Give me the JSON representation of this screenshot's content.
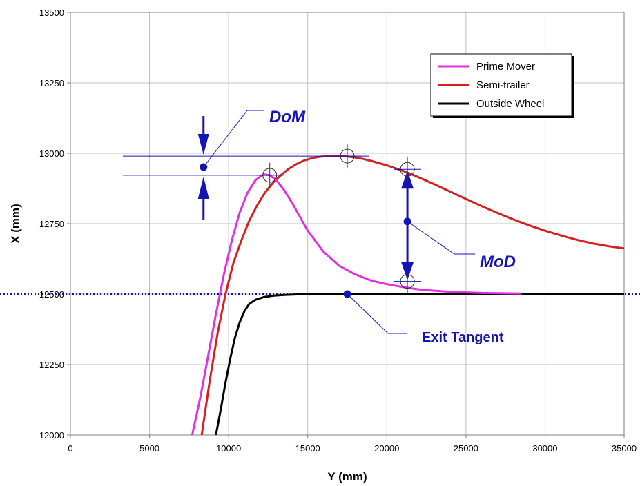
{
  "chart_data": {
    "type": "line",
    "title": "",
    "xlabel": "Y (mm)",
    "ylabel": "X (mm)",
    "xlim": [
      0,
      35000
    ],
    "ylim": [
      12000,
      13500
    ],
    "x_ticks": [
      0,
      5000,
      10000,
      15000,
      20000,
      25000,
      30000,
      35000
    ],
    "y_ticks": [
      12000,
      12250,
      12500,
      12750,
      13000,
      13250,
      13500
    ],
    "x_tick_labels": [
      "0",
      "5000",
      "10000",
      "15000",
      "20000",
      "25000",
      "30000",
      "35000"
    ],
    "y_tick_labels": [
      "12000",
      "12250",
      "12500",
      "12750",
      "13000",
      "13250",
      "13500"
    ],
    "grid": true,
    "legend_position": "top-right",
    "series": [
      {
        "name": "Prime Mover",
        "color": "#e030e0",
        "x": [
          7700,
          8200,
          8700,
          9200,
          9700,
          10200,
          10700,
          11200,
          11700,
          12200,
          12600,
          13000,
          13500,
          14000,
          14500,
          15000,
          16000,
          17000,
          18000,
          19000,
          20000,
          21000,
          22000,
          23000,
          24000,
          26000,
          28500
        ],
        "y": [
          12000,
          12130,
          12280,
          12430,
          12570,
          12690,
          12790,
          12860,
          12905,
          12925,
          12922,
          12905,
          12870,
          12825,
          12775,
          12725,
          12650,
          12600,
          12570,
          12548,
          12535,
          12525,
          12517,
          12512,
          12508,
          12504,
          12502
        ]
      },
      {
        "name": "Semi-trailer",
        "color": "#d62020",
        "x": [
          8300,
          8800,
          9300,
          9800,
          10300,
          10800,
          11300,
          11800,
          12300,
          12800,
          13300,
          13800,
          14300,
          14800,
          15300,
          15800,
          16300,
          16800,
          17300,
          17600,
          18000,
          18500,
          19000,
          20000,
          21000,
          22000,
          23000,
          24000,
          25000,
          26000,
          27000,
          28000,
          29000,
          30000,
          31000,
          32000,
          33000,
          34000,
          35000
        ],
        "y": [
          12000,
          12190,
          12360,
          12500,
          12610,
          12690,
          12760,
          12815,
          12860,
          12895,
          12922,
          12945,
          12962,
          12975,
          12983,
          12988,
          12990,
          12990,
          12989,
          12988,
          12985,
          12980,
          12973,
          12957,
          12938,
          12915,
          12890,
          12864,
          12838,
          12812,
          12788,
          12765,
          12744,
          12725,
          12708,
          12693,
          12680,
          12670,
          12662
        ]
      },
      {
        "name": "Outside Wheel",
        "color": "#000000",
        "x": [
          9200,
          9500,
          9800,
          10100,
          10400,
          10700,
          11000,
          11300,
          11700,
          12200,
          12800,
          13500,
          14500,
          15500,
          17000,
          20000,
          25000,
          30000,
          35000
        ],
        "y": [
          12000,
          12090,
          12185,
          12270,
          12345,
          12400,
          12440,
          12465,
          12480,
          12489,
          12494,
          12497,
          12499,
          12500,
          12500,
          12500,
          12500,
          12500,
          12500
        ]
      }
    ],
    "reference_line": {
      "y": 12500,
      "style": "dotted",
      "color": "#1414b4"
    },
    "annotations": [
      {
        "label": "DoM",
        "y_top": 12990,
        "y_bottom": 12922,
        "x_arrow": 8500
      },
      {
        "label": "MoD",
        "x": 21300,
        "y_top": 12943,
        "y_bottom": 12545
      },
      {
        "label": "Exit Tangent",
        "x": 17500,
        "y": 12500
      }
    ],
    "markers": [
      {
        "x": 12600,
        "y": 12922,
        "shape": "crosshair-circle"
      },
      {
        "x": 17500,
        "y": 12990,
        "shape": "crosshair-circle"
      },
      {
        "x": 21300,
        "y": 12943,
        "shape": "crosshair-circle"
      },
      {
        "x": 21300,
        "y": 12545,
        "shape": "crosshair-circle"
      }
    ]
  }
}
